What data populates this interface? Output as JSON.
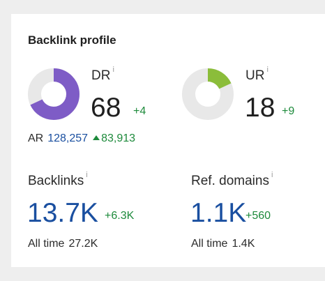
{
  "card": {
    "title": "Backlink profile"
  },
  "dr": {
    "label": "DR",
    "info": "i",
    "value": "68",
    "delta": "+4",
    "fill_fraction": 0.68,
    "color": "#7e5cc6"
  },
  "ur": {
    "label": "UR",
    "info": "i",
    "value": "18",
    "delta": "+9",
    "fill_fraction": 0.18,
    "color": "#8bbd3a"
  },
  "ar": {
    "label": "AR",
    "value": "128,257",
    "change": "83,913",
    "change_icon": "triangle-up-icon"
  },
  "backlinks": {
    "label": "Backlinks",
    "info": "i",
    "value": "13.7K",
    "delta": "+6.3K",
    "alltime_label": "All time",
    "alltime_value": "27.2K"
  },
  "ref_domains": {
    "label": "Ref. domains",
    "info": "i",
    "value": "1.1K",
    "delta": "+560",
    "alltime_label": "All time",
    "alltime_value": "1.4K"
  },
  "colors": {
    "link_blue": "#1a4fa0",
    "positive_green": "#1d8a3b",
    "ring_track": "#e8e8e8"
  }
}
